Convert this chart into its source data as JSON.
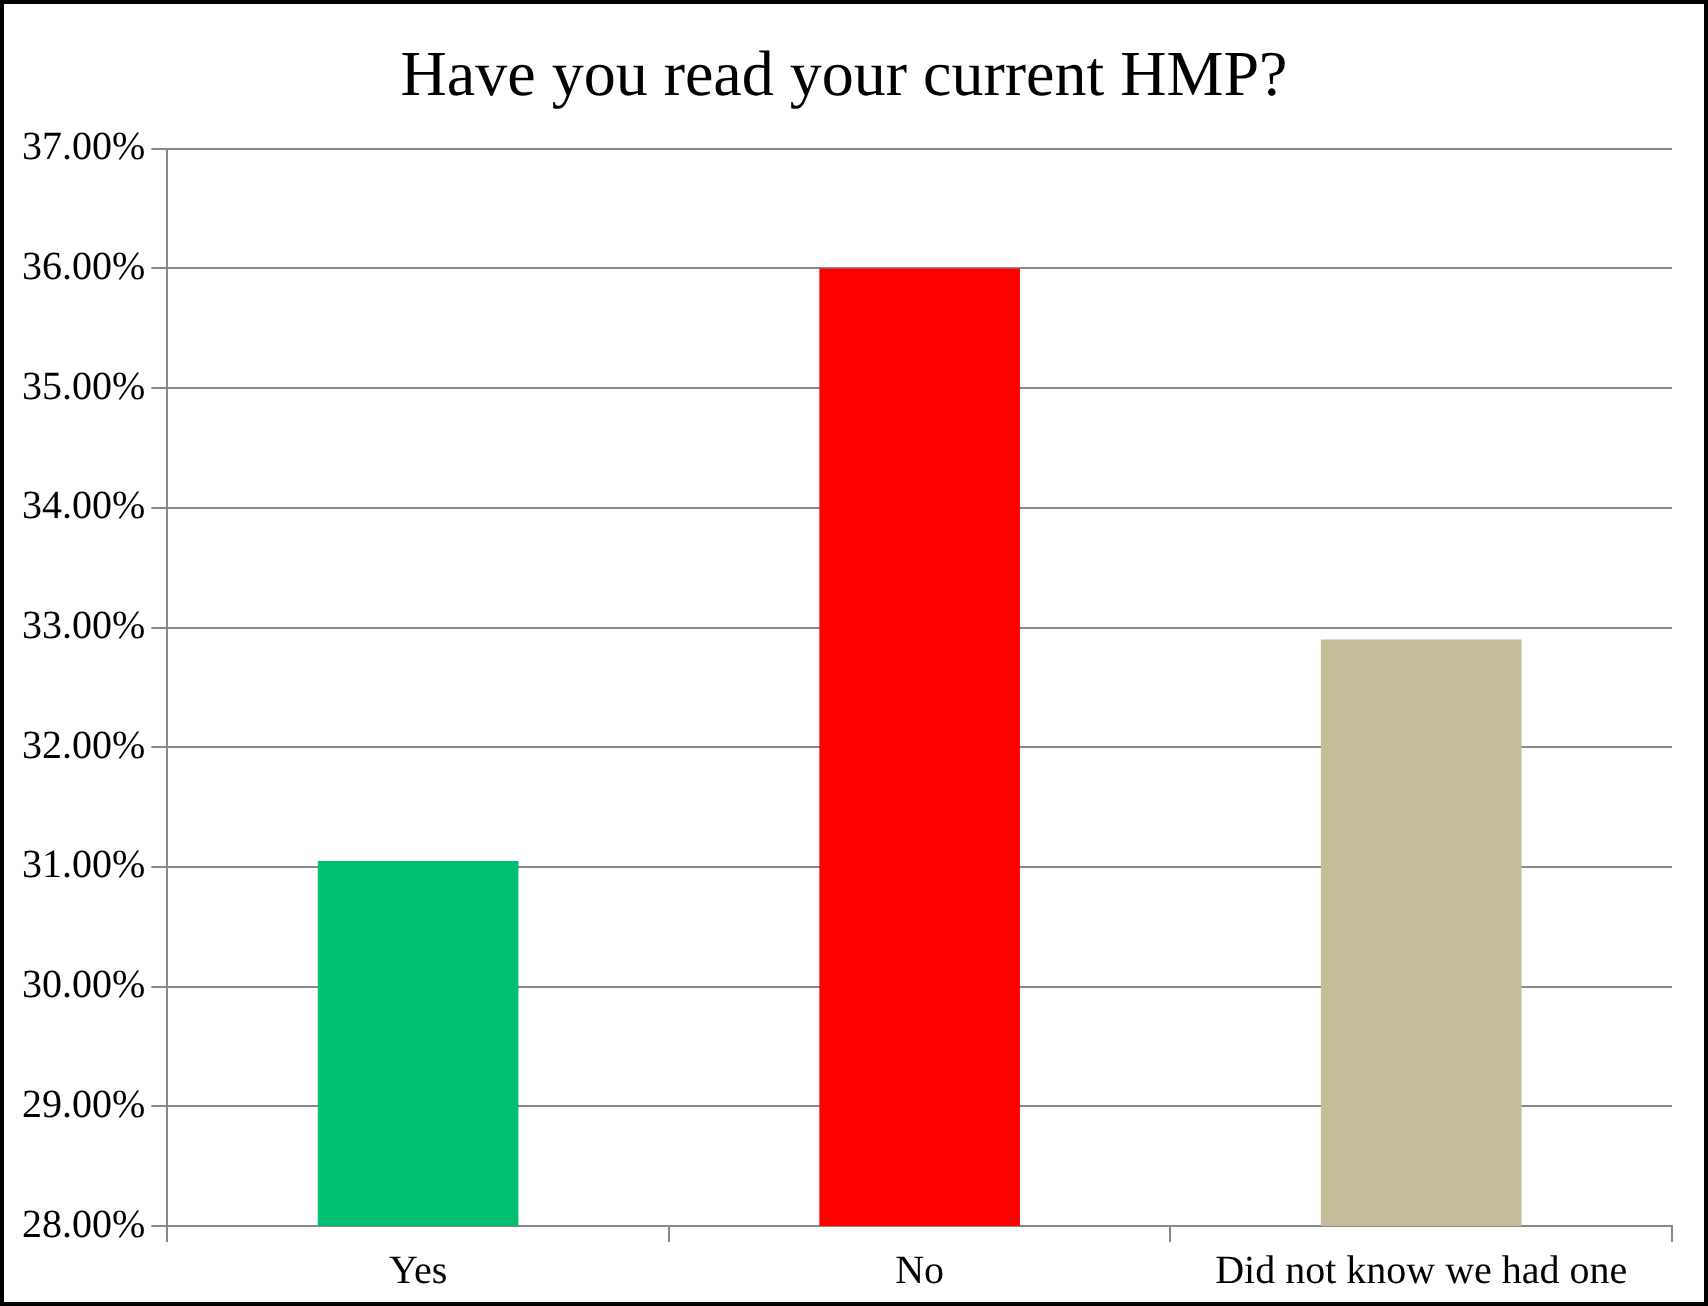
{
  "chart_data": {
    "type": "bar",
    "title": "Have you read your current HMP?",
    "categories": [
      "Yes",
      "No",
      "Did not know we had one"
    ],
    "values": [
      31.05,
      36.0,
      32.9
    ],
    "colors": [
      "#00bf6f",
      "#ff0000",
      "#c4bc96"
    ],
    "ylim": [
      28,
      37
    ],
    "yticks": [
      {
        "value": 28,
        "label": "28.00%"
      },
      {
        "value": 29,
        "label": "29.00%"
      },
      {
        "value": 30,
        "label": "30.00%"
      },
      {
        "value": 31,
        "label": "31.00%"
      },
      {
        "value": 32,
        "label": "32.00%"
      },
      {
        "value": 33,
        "label": "33.00%"
      },
      {
        "value": 34,
        "label": "34.00%"
      },
      {
        "value": 35,
        "label": "35.00%"
      },
      {
        "value": 36,
        "label": "36.00%"
      },
      {
        "value": 37,
        "label": "37.00%"
      }
    ],
    "grid": "y",
    "legend": false
  }
}
